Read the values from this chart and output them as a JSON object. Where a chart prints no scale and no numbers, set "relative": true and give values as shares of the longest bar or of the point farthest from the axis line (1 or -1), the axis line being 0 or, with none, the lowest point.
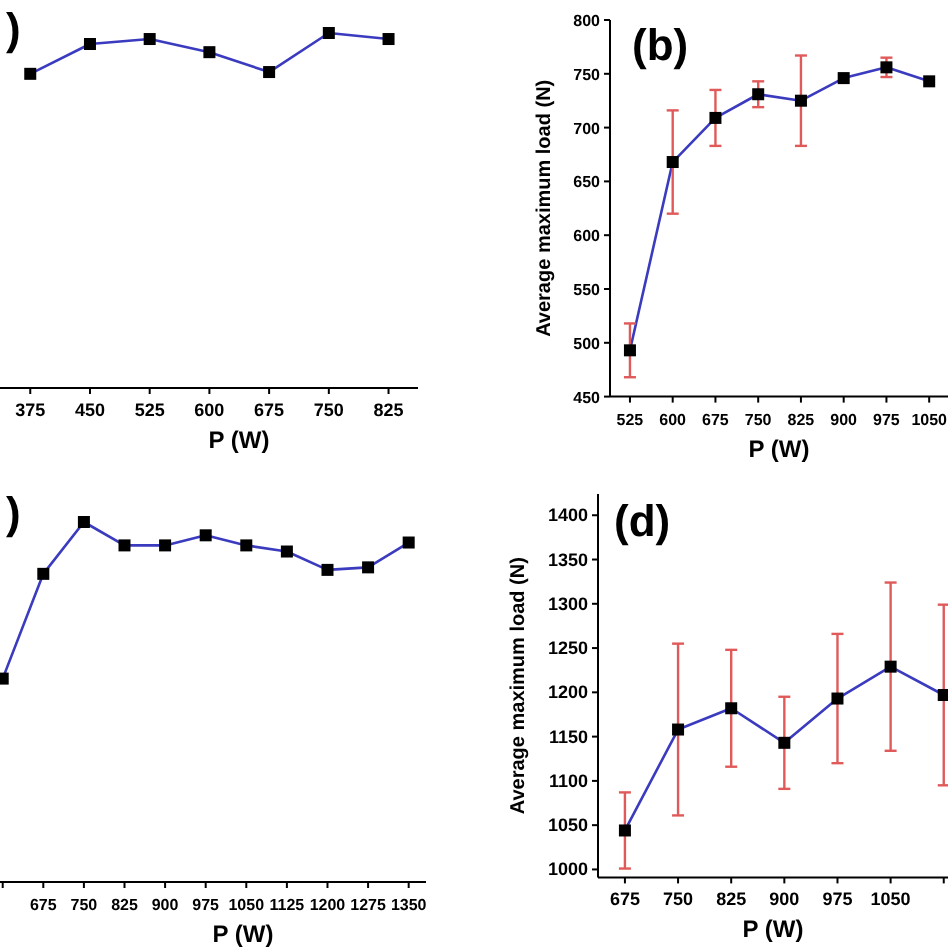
{
  "chart_data": [
    {
      "type": "line",
      "title": ")",
      "xlabel": "P (W)",
      "relative": true,
      "marker": "square",
      "xlim": [
        337,
        862
      ],
      "xticks": [
        375,
        450,
        525,
        600,
        675,
        750,
        825
      ],
      "series": [
        {
          "color": "#3b3bbf",
          "x": [
            375,
            450,
            525,
            600,
            675,
            750,
            825
          ],
          "values": [
            0.885,
            0.969,
            0.983,
            0.946,
            0.89,
            1,
            0.983
          ]
        }
      ]
    },
    {
      "type": "line",
      "title": "(b)",
      "xlabel": "P (W)",
      "ylabel": "Average maximum load (N)",
      "marker": "square",
      "xlim": [
        490,
        1083
      ],
      "xticks": [
        525,
        600,
        675,
        750,
        825,
        900,
        975,
        1050
      ],
      "ylim": [
        450,
        800
      ],
      "yticks": [
        450,
        500,
        550,
        600,
        650,
        700,
        750,
        800
      ],
      "series": [
        {
          "color": "#3b3bbf",
          "x": [
            525,
            600,
            675,
            750,
            825,
            900,
            975,
            1050
          ],
          "values": [
            493,
            668,
            709,
            731,
            725,
            746,
            756,
            743
          ],
          "errors": [
            25,
            48,
            26,
            12,
            42,
            null,
            9,
            null
          ]
        }
      ]
    },
    {
      "type": "line",
      "title": ")",
      "xlabel": "P (W)",
      "relative": true,
      "marker": "square",
      "xlim": [
        595,
        1382
      ],
      "xticks": [
        {
          "value": 600,
          "label": null
        },
        675,
        750,
        825,
        900,
        975,
        1050,
        1125,
        1200,
        1275,
        1350
      ],
      "series": [
        {
          "color": "#3b3bbf",
          "x": [
            600,
            675,
            750,
            825,
            900,
            975,
            1050,
            1125,
            1200,
            1275,
            1350
          ],
          "values": [
            0.565,
            0.856,
            1,
            0.935,
            0.935,
            0.963,
            0.935,
            0.918,
            0.867,
            0.874,
            0.943
          ]
        }
      ]
    },
    {
      "type": "line",
      "title": "(d)",
      "xlabel": "P (W)",
      "ylabel": "Average maximum load (N)",
      "marker": "square",
      "xlim": [
        637,
        1131
      ],
      "xticks": [
        675,
        750,
        825,
        900,
        975,
        1050,
        {
          "value": 1125,
          "label": null
        }
      ],
      "ylim": [
        991,
        1424
      ],
      "yticks": [
        1000,
        1050,
        1100,
        1150,
        1200,
        1250,
        1300,
        1350,
        1400
      ],
      "series": [
        {
          "color": "#3b3bbf",
          "x": [
            675,
            750,
            825,
            900,
            975,
            1050,
            1125
          ],
          "values": [
            1044,
            1158,
            1182,
            1143,
            1193,
            1229,
            1197
          ],
          "errors": [
            43,
            97,
            66,
            52,
            73,
            95,
            102
          ]
        }
      ]
    }
  ]
}
